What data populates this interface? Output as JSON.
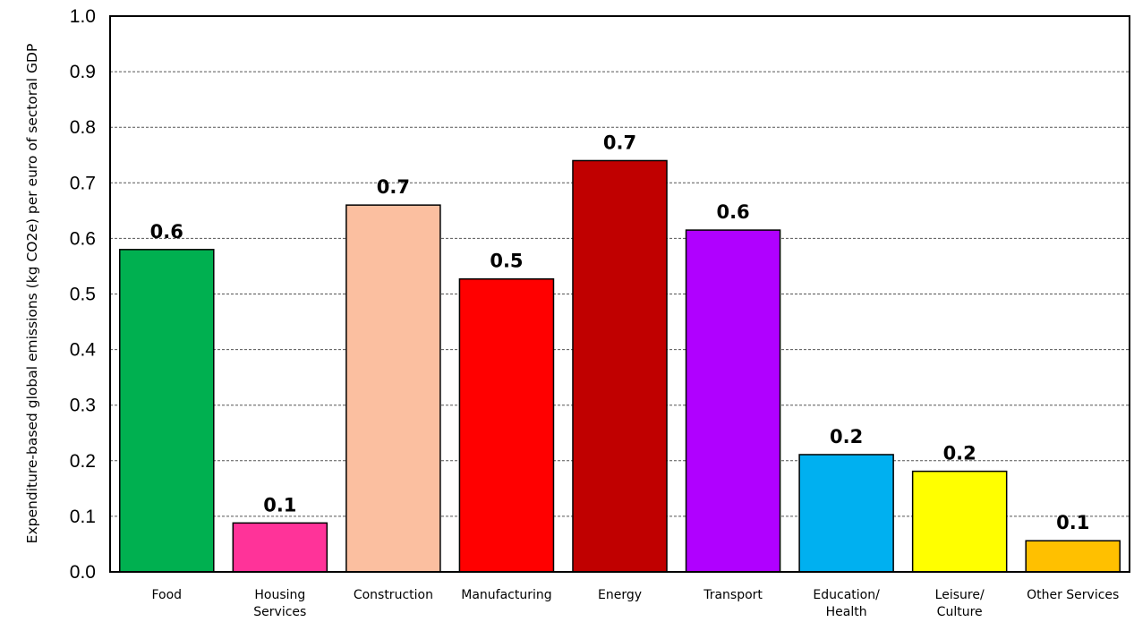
{
  "chart_data": {
    "type": "bar",
    "title": "",
    "xlabel": "",
    "ylabel": "Expenditure-based global emissions (kg CO2e) per euro of sectoral GDP",
    "ylim": [
      0,
      1.0
    ],
    "yticks": [
      "0.0",
      "0.1",
      "0.2",
      "0.3",
      "0.4",
      "0.5",
      "0.6",
      "0.7",
      "0.8",
      "0.9",
      "1.0"
    ],
    "grid": "horizontal dashed",
    "legend": "none",
    "categories": [
      [
        "Food"
      ],
      [
        "Housing",
        "Services"
      ],
      [
        "Construction"
      ],
      [
        "Manufacturing"
      ],
      [
        "Energy"
      ],
      [
        "Transport"
      ],
      [
        "Education/",
        "Health"
      ],
      [
        "Leisure/",
        "Culture"
      ],
      [
        "Other Services"
      ]
    ],
    "values": [
      0.58,
      0.088,
      0.66,
      0.527,
      0.74,
      0.615,
      0.211,
      0.181,
      0.056
    ],
    "data_labels": [
      "0.6",
      "0.1",
      "0.7",
      "0.5",
      "0.7",
      "0.6",
      "0.2",
      "0.2",
      "0.1"
    ],
    "colors": [
      "#00b050",
      "#ff3399",
      "#fbbfa0",
      "#ff0000",
      "#c00000",
      "#b000ff",
      "#00b0f0",
      "#ffff00",
      "#ffc000"
    ]
  }
}
